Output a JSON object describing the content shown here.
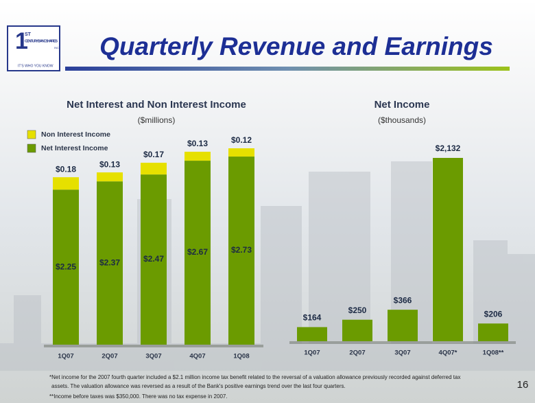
{
  "header": {
    "title": "Quarterly Revenue and Earnings",
    "logo_number": "1",
    "logo_sup": "ST",
    "logo_name": "CENTURY BANCSHARES",
    "logo_inc": "INC",
    "logo_tagline": "IT'S WHO YOU KNOW"
  },
  "chart_data": [
    {
      "type": "stacked_bar",
      "title": "Net Interest and Non Interest Income",
      "subtitle": "($millions)",
      "categories": [
        "1Q07",
        "2Q07",
        "3Q07",
        "4Q07",
        "1Q08"
      ],
      "series": [
        {
          "name": "Net Interest Income",
          "color": "#6b9b00",
          "values": [
            2.25,
            2.37,
            2.47,
            2.67,
            2.73
          ],
          "value_labels": [
            "$2.25",
            "$2.37",
            "$2.47",
            "$2.67",
            "$2.73"
          ]
        },
        {
          "name": "Non Interest Income",
          "color": "#e6e000",
          "values": [
            0.18,
            0.13,
            0.17,
            0.13,
            0.12
          ],
          "value_labels": [
            "$0.18",
            "$0.13",
            "$0.17",
            "$0.13",
            "$0.12"
          ]
        }
      ]
    },
    {
      "type": "bar",
      "title": "Net Income",
      "subtitle": "($thousands)",
      "categories": [
        "1Q07",
        "2Q07",
        "3Q07",
        "4Q07*",
        "1Q08**"
      ],
      "color": "#6b9b00",
      "values": [
        164,
        250,
        366,
        2132,
        206
      ],
      "value_labels": [
        "$164",
        "$250",
        "$366",
        "$2,132",
        "$206"
      ]
    }
  ],
  "footnotes": [
    "*Net income for the 2007 fourth quarter included a $2.1 million income tax benefit related to the reversal of a valuation allowance previously recorded against deferred tax",
    "assets. The valuation allowance was reversed as a result of the Bank's positive earnings trend over the last four quarters.",
    "**Income before taxes was $350,000.  There was no tax expense in 2007."
  ],
  "page_number": "16"
}
